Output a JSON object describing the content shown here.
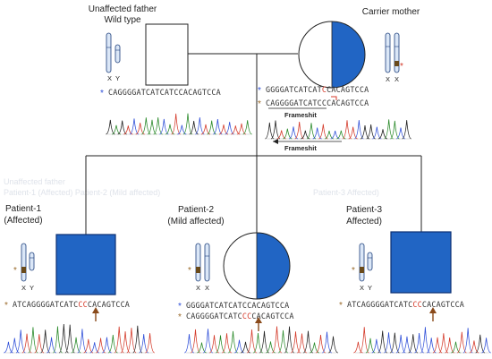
{
  "colors": {
    "affected": "#2165c4",
    "affected_border": "#0b2f73",
    "line": "#222222",
    "chromosome_fill": "#dbe7f7",
    "chromosome_stroke": "#1b3d7a",
    "star_blue": "#2f4fd8",
    "star_brown": "#9a6a2a",
    "mutation_red": "#d43a2a",
    "arrow": "#8a4a1a",
    "seq_text": "#333333"
  },
  "father": {
    "title": "Unaffected father",
    "subtitle": "Wild type",
    "chromosome_labels": [
      "X",
      "Y"
    ],
    "sequences": [
      {
        "star_color": "#2f4fd8",
        "parts": [
          {
            "text": "CAGGGGATCATCATCCACAGTCCA",
            "color": "#333333"
          }
        ]
      }
    ]
  },
  "mother": {
    "title": "Carrier mother",
    "chromosome_labels": [
      "X",
      "X"
    ],
    "sequences": [
      {
        "star_color": "#2f4fd8",
        "parts": [
          {
            "text": "GGGGATCATCAT",
            "color": "#333333"
          },
          {
            "text": "C",
            "color": "#d43a2a"
          },
          {
            "text": "CACAGTCCA",
            "color": "#333333"
          }
        ]
      },
      {
        "star_color": "#9a6a2a",
        "parts": [
          {
            "text": "CAGGGGATCATCCCACAGTCCA",
            "color": "#333333"
          }
        ]
      }
    ],
    "frameshift_labels": [
      "Frameshit",
      "Frameshit"
    ]
  },
  "patient1": {
    "title": "Patient-1",
    "subtitle": "(Affected)",
    "chromosome_labels": [
      "X",
      "Y"
    ],
    "sequences": [
      {
        "star_color": "#9a6a2a",
        "parts": [
          {
            "text": "ATCAGGGGATCATC",
            "color": "#333333"
          },
          {
            "text": "CC",
            "color": "#d43a2a"
          },
          {
            "text": "CACAGTCCA",
            "color": "#333333"
          }
        ]
      }
    ]
  },
  "patient2": {
    "title": "Patient-2",
    "subtitle": "(Mild affected)",
    "chromosome_labels": [
      "X",
      "X"
    ],
    "sequences": [
      {
        "star_color": "#2f4fd8",
        "parts": [
          {
            "text": "GGGGATCATCATCCACAGTCCA",
            "color": "#333333"
          }
        ]
      },
      {
        "star_color": "#9a6a2a",
        "parts": [
          {
            "text": "CAGGGGATCATC",
            "color": "#333333"
          },
          {
            "text": "CC",
            "color": "#d43a2a"
          },
          {
            "text": "CACAGTCCA",
            "color": "#333333"
          }
        ]
      }
    ]
  },
  "patient3": {
    "title": "Patient-3",
    "subtitle": "Affected)",
    "chromosome_labels": [
      "X",
      "Y"
    ],
    "sequences": [
      {
        "star_color": "#9a6a2a",
        "parts": [
          {
            "text": "ATCAGGGGATCATC",
            "color": "#333333"
          },
          {
            "text": "CC",
            "color": "#d43a2a"
          },
          {
            "text": "CACAGTCCA",
            "color": "#333333"
          }
        ]
      }
    ]
  },
  "watermark_lines": [
    "Unaffected father",
    "Patient-1 (Affected) Patient-2 (Mild affected)",
    "Patient-3 Affected)"
  ]
}
